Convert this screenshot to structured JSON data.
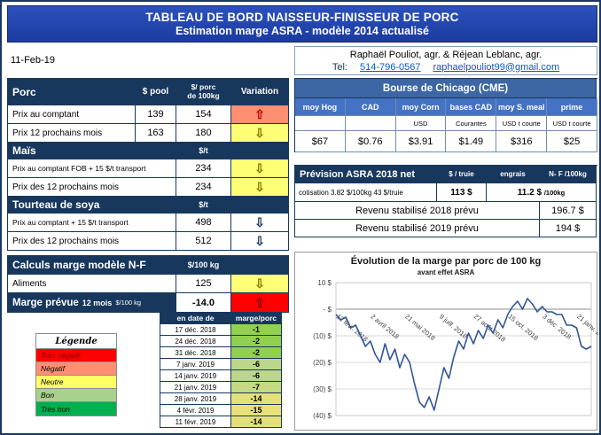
{
  "header": {
    "title1": "TABLEAU DE BORD NAISSEUR-FINISSEUR DE PORC",
    "title2": "Estimation marge ASRA - modèle 2014 actualisé"
  },
  "date": "11-Feb-19",
  "contact": {
    "names": "Raphaël Pouliot, agr.   &   Réjean Leblanc, agr.",
    "tel_label": "Tel:",
    "phone": "514-796-0567",
    "email": "raphaelpouliot99@gmail.com"
  },
  "porc": {
    "title": "Porc",
    "col_pool": "$ pool",
    "col_price_l1": "$/ porc",
    "col_price_l2": "de 100kg",
    "col_variation": "Variation",
    "rows": [
      {
        "label": "Prix au comptant",
        "pool": "139",
        "price": "154",
        "arrow": "⇧",
        "bg": "#FF8F73",
        "fg": "#C00000"
      },
      {
        "label": "Prix 12 prochains mois",
        "pool": "163",
        "price": "180",
        "arrow": "⇩",
        "bg": "#FFFF75",
        "fg": "#8A7500"
      }
    ]
  },
  "mais": {
    "title": "Maïs",
    "unit": "$/t",
    "rows": [
      {
        "label": "Prix au comptant FOB + 15 $/t transport",
        "price": "234",
        "arrow": "⇩",
        "bg": "#FFFF75",
        "fg": "#8A7500"
      },
      {
        "label": "Prix des 12 prochains mois",
        "price": "234",
        "arrow": "⇩",
        "bg": "#FFFF75",
        "fg": "#8A7500"
      }
    ]
  },
  "tourteau": {
    "title": "Tourteau de soya",
    "unit": "$/t",
    "rows": [
      {
        "label": "Prix au comptant + 15 $/t transport",
        "price": "498",
        "arrow": "⇩",
        "bg": "#FFFFFF",
        "fg": "#17375D"
      },
      {
        "label": "Prix des 12 prochains mois",
        "price": "512",
        "arrow": "⇩",
        "bg": "#FFFFFF",
        "fg": "#17375D"
      }
    ]
  },
  "calculs": {
    "title": "Calculs marge  modèle N-F",
    "unit": "$/100 kg",
    "aliments": {
      "label": "Aliments",
      "price": "125",
      "arrow": "⇩",
      "bg": "#FFFF75",
      "fg": "#8A7500"
    },
    "marge": {
      "label": "Marge prévue",
      "sub": "12 mois",
      "unit": "$/100 kg",
      "value": "-14.0",
      "arrow": "⇧",
      "bg": "#FF0000",
      "fg": "#7F0000"
    }
  },
  "legend": {
    "title": "Légende",
    "items": [
      {
        "label": "Très négatif",
        "bg": "#FF0000",
        "fg": "#7F0000"
      },
      {
        "label": "Négatif",
        "bg": "#FF8F73",
        "fg": "#000000"
      },
      {
        "label": "Neutre",
        "bg": "#FFFF66",
        "fg": "#000000"
      },
      {
        "label": "Bon",
        "bg": "#A9D18E",
        "fg": "#000000"
      },
      {
        "label": "Très bon",
        "bg": "#00B050",
        "fg": "#000000"
      }
    ]
  },
  "history": {
    "col_date": "en date de",
    "col_value": "marge/porc",
    "rows": [
      {
        "date": "17 déc. 2018",
        "value": "-1",
        "bg": "#92D050"
      },
      {
        "date": "24 déc. 2018",
        "value": "-2",
        "bg": "#92D050"
      },
      {
        "date": "31 déc. 2018",
        "value": "-2",
        "bg": "#92D050"
      },
      {
        "date": "7 janv. 2019",
        "value": "-6",
        "bg": "#BCD68A"
      },
      {
        "date": "14 janv. 2019",
        "value": "-6",
        "bg": "#BCD68A"
      },
      {
        "date": "21 janv. 2019",
        "value": "-7",
        "bg": "#C3D982"
      },
      {
        "date": "28 janv. 2019",
        "value": "-14",
        "bg": "#E4E079"
      },
      {
        "date": "4 févr. 2019",
        "value": "-15",
        "bg": "#E8E178"
      },
      {
        "date": "11 févr. 2019",
        "value": "-14",
        "bg": "#E4E079"
      }
    ]
  },
  "cme": {
    "title": "Bourse de Chicago (CME)",
    "columns": [
      "moy Hog",
      "CAD",
      "moy Corn",
      "bases CAD",
      "moy S. meal",
      "prime"
    ],
    "units": [
      "",
      "",
      "USD",
      "Courantes",
      "USD t courte",
      "USD t courte"
    ],
    "values": [
      "$67",
      "$0.76",
      "$3.91",
      "$1.49",
      "$316",
      "$25"
    ]
  },
  "asra": {
    "title": "Prévision ASRA 2018 net",
    "col_truie": "$ / truie",
    "col_engrais": "engrais",
    "col_nf": "N- F /100kg",
    "cotisation": "cotisation 3.82 $/100kg  43 $/truie",
    "truie_value": "113 $",
    "engrais_value": "11.2 $",
    "engrais_unit": "/100kg",
    "revenu_2018_label": "Revenu stabilisé 2018 prévu",
    "revenu_2018_value": "196.7 $",
    "revenu_2019_label": "Revenu stabilisé 2019 prévu",
    "revenu_2019_value": "194 $"
  },
  "chart_data": {
    "type": "line",
    "title": "Évolution de la marge par porc de 100 kg",
    "subtitle": "avant effet ASRA",
    "series_name": "marge par porc ($/100 kg)",
    "ylim": [
      -40,
      10
    ],
    "grid": true,
    "legend_position": "none",
    "yticks": [
      10,
      0,
      -10,
      -20,
      -30,
      -40
    ],
    "ytick_labels": [
      "10 $",
      "- $",
      "(10) $",
      "(20) $",
      "(30) $",
      "(40) $"
    ],
    "xticks": [
      {
        "index": 0,
        "label": "12 févr. 2018"
      },
      {
        "index": 7,
        "label": "2 avril 2018"
      },
      {
        "index": 14,
        "label": "21 mai 2018"
      },
      {
        "index": 21,
        "label": "9 juill. 2018"
      },
      {
        "index": 28,
        "label": "27 août 2018"
      },
      {
        "index": 35,
        "label": "15 oct. 2018"
      },
      {
        "index": 42,
        "label": "3 déc. 2018"
      },
      {
        "index": 49,
        "label": "21 janv. 2019"
      }
    ],
    "values": [
      -2,
      -4,
      -3,
      -7,
      -6,
      -10,
      -14,
      -12,
      -17,
      -20,
      -13,
      -19,
      -15,
      -22,
      -17,
      -20,
      -28,
      -35,
      -37,
      -33,
      -38,
      -30,
      -22,
      -26,
      -18,
      -12,
      -15,
      -9,
      -13,
      -8,
      -11,
      -6,
      -9,
      -4,
      -7,
      -2,
      1,
      3,
      0,
      4,
      2,
      -1,
      1,
      -1,
      -1,
      -2,
      -2,
      -6,
      -6,
      -7,
      -14,
      -15,
      -14
    ],
    "line_color": "#2F5597"
  }
}
